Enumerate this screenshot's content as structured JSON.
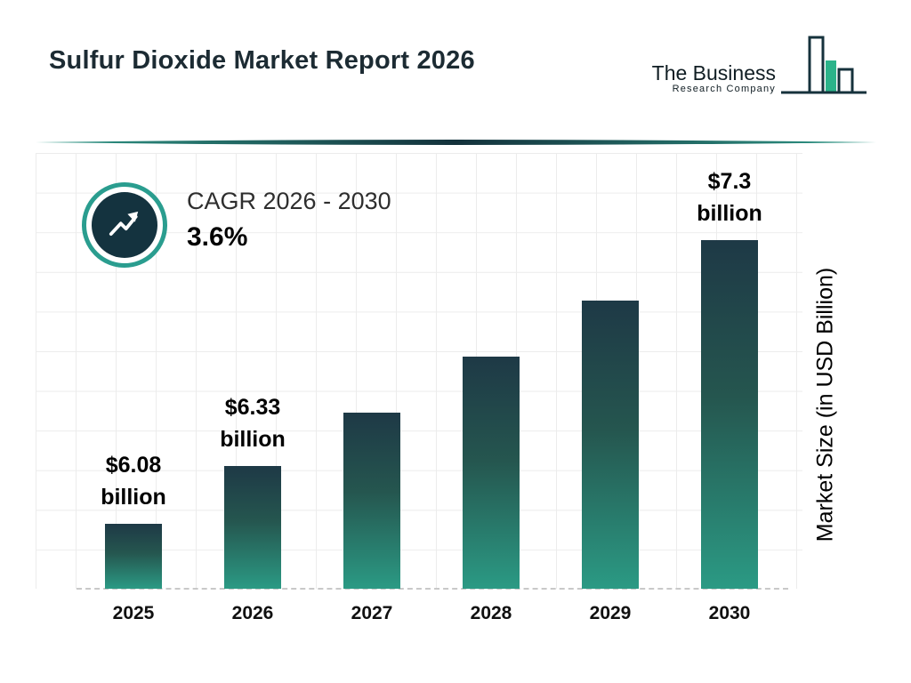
{
  "header": {
    "title": "Sulfur Dioxide Market Report 2026",
    "logo": {
      "line1": "The Business",
      "line2": "Research Company"
    }
  },
  "cagr": {
    "label": "CAGR 2026 - 2030",
    "value": "3.6%"
  },
  "chart_data": {
    "type": "bar",
    "title": "Sulfur Dioxide Market Report 2026",
    "categories": [
      "2025",
      "2026",
      "2027",
      "2028",
      "2029",
      "2030"
    ],
    "values": [
      6.08,
      6.33,
      6.56,
      6.8,
      7.04,
      7.3
    ],
    "bar_labels": [
      "$6.08 billion",
      "$6.33 billion",
      null,
      null,
      null,
      "$7.3 billion"
    ],
    "xlabel": "",
    "ylabel": "Market Size (in USD Billion)",
    "ylim": [
      5.8,
      7.6
    ],
    "grid": true,
    "legend": false,
    "unit": "USD Billion",
    "colors": {
      "bar_top": "#1e3946",
      "bar_bottom": "#2b9a84",
      "accent_teal": "#2a9d8f",
      "dark_navy": "#16323c",
      "logo_green": "#2bb38a"
    }
  }
}
